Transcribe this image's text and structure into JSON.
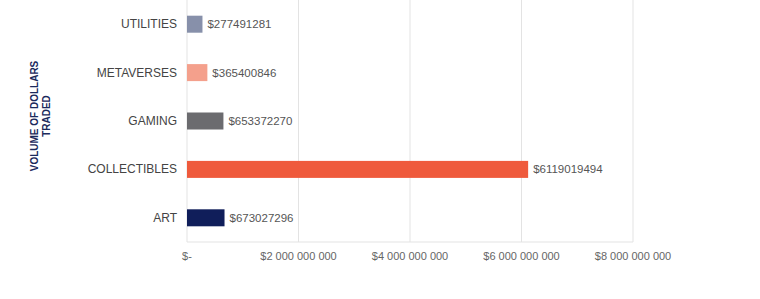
{
  "chart_data": {
    "type": "bar",
    "orientation": "horizontal",
    "y_label": "VOLUME OF DOLLARS TRADED",
    "categories": [
      "UTILITIES",
      "METAVERSES",
      "GAMING",
      "COLLECTIBLES",
      "ART"
    ],
    "values": [
      277491281,
      365400846,
      653372270,
      6119019494,
      673027296
    ],
    "value_labels": [
      "$277491281",
      "$365400846",
      "$653372270",
      "$6119019494",
      "$673027296"
    ],
    "colors": [
      "#8790aa",
      "#f4a08c",
      "#6b6b6f",
      "#ef5a3c",
      "#101e5a"
    ],
    "data_labels": true,
    "grid": true,
    "xlim": [
      0,
      8000000000
    ],
    "xticks": [
      {
        "value": 0,
        "label": "$-"
      },
      {
        "value": 2000000000,
        "label": "$2 000 000 000"
      },
      {
        "value": 4000000000,
        "label": "$4 000 000 000"
      },
      {
        "value": 6000000000,
        "label": "$6 000 000 000"
      },
      {
        "value": 8000000000,
        "label": "$8 000 000 000"
      }
    ]
  }
}
